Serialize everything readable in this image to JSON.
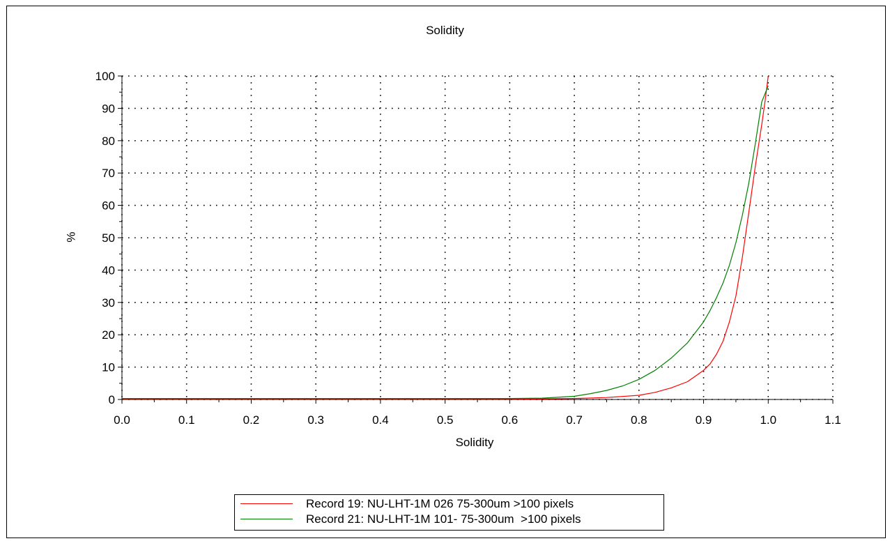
{
  "chart_data": {
    "type": "line",
    "title": "Solidity",
    "xlabel": "Solidity",
    "ylabel": "%",
    "xlim": [
      0.0,
      1.1
    ],
    "ylim": [
      0,
      100
    ],
    "x_ticks": [
      "0.0",
      "0.1",
      "0.2",
      "0.3",
      "0.4",
      "0.5",
      "0.6",
      "0.7",
      "0.8",
      "0.9",
      "1.0",
      "1.1"
    ],
    "y_ticks": [
      "0",
      "10",
      "20",
      "30",
      "40",
      "50",
      "60",
      "70",
      "80",
      "90",
      "100"
    ],
    "grid": true,
    "legend_position": "bottom",
    "series": [
      {
        "name": "Record 19: NU-LHT-1M 026 75-300um >100 pixels",
        "color": "#ff0000",
        "x": [
          0.0,
          0.6,
          0.65,
          0.7,
          0.75,
          0.8,
          0.825,
          0.85,
          0.875,
          0.9,
          0.91,
          0.92,
          0.93,
          0.94,
          0.95,
          0.96,
          0.97,
          0.98,
          0.99,
          0.995,
          1.0
        ],
        "y": [
          0.2,
          0.2,
          0.2,
          0.3,
          0.6,
          1.3,
          2.2,
          3.6,
          5.5,
          9.0,
          11.0,
          14.0,
          18.0,
          24.0,
          32.0,
          44.0,
          58.0,
          72.0,
          85.0,
          92.0,
          100.0
        ]
      },
      {
        "name": "Record 21: NU-LHT-1M 101- 75-300um  >100 pixels",
        "color": "#008000",
        "x": [
          0.0,
          0.6,
          0.65,
          0.7,
          0.725,
          0.75,
          0.775,
          0.8,
          0.825,
          0.85,
          0.875,
          0.9,
          0.91,
          0.92,
          0.93,
          0.94,
          0.95,
          0.96,
          0.97,
          0.98,
          0.99,
          1.0
        ],
        "y": [
          0.3,
          0.3,
          0.4,
          1.0,
          1.8,
          2.8,
          4.2,
          6.2,
          9.0,
          12.8,
          17.5,
          24.0,
          27.5,
          31.5,
          36.0,
          41.5,
          48.5,
          57.0,
          67.0,
          79.0,
          92.0,
          97.0
        ]
      }
    ]
  }
}
